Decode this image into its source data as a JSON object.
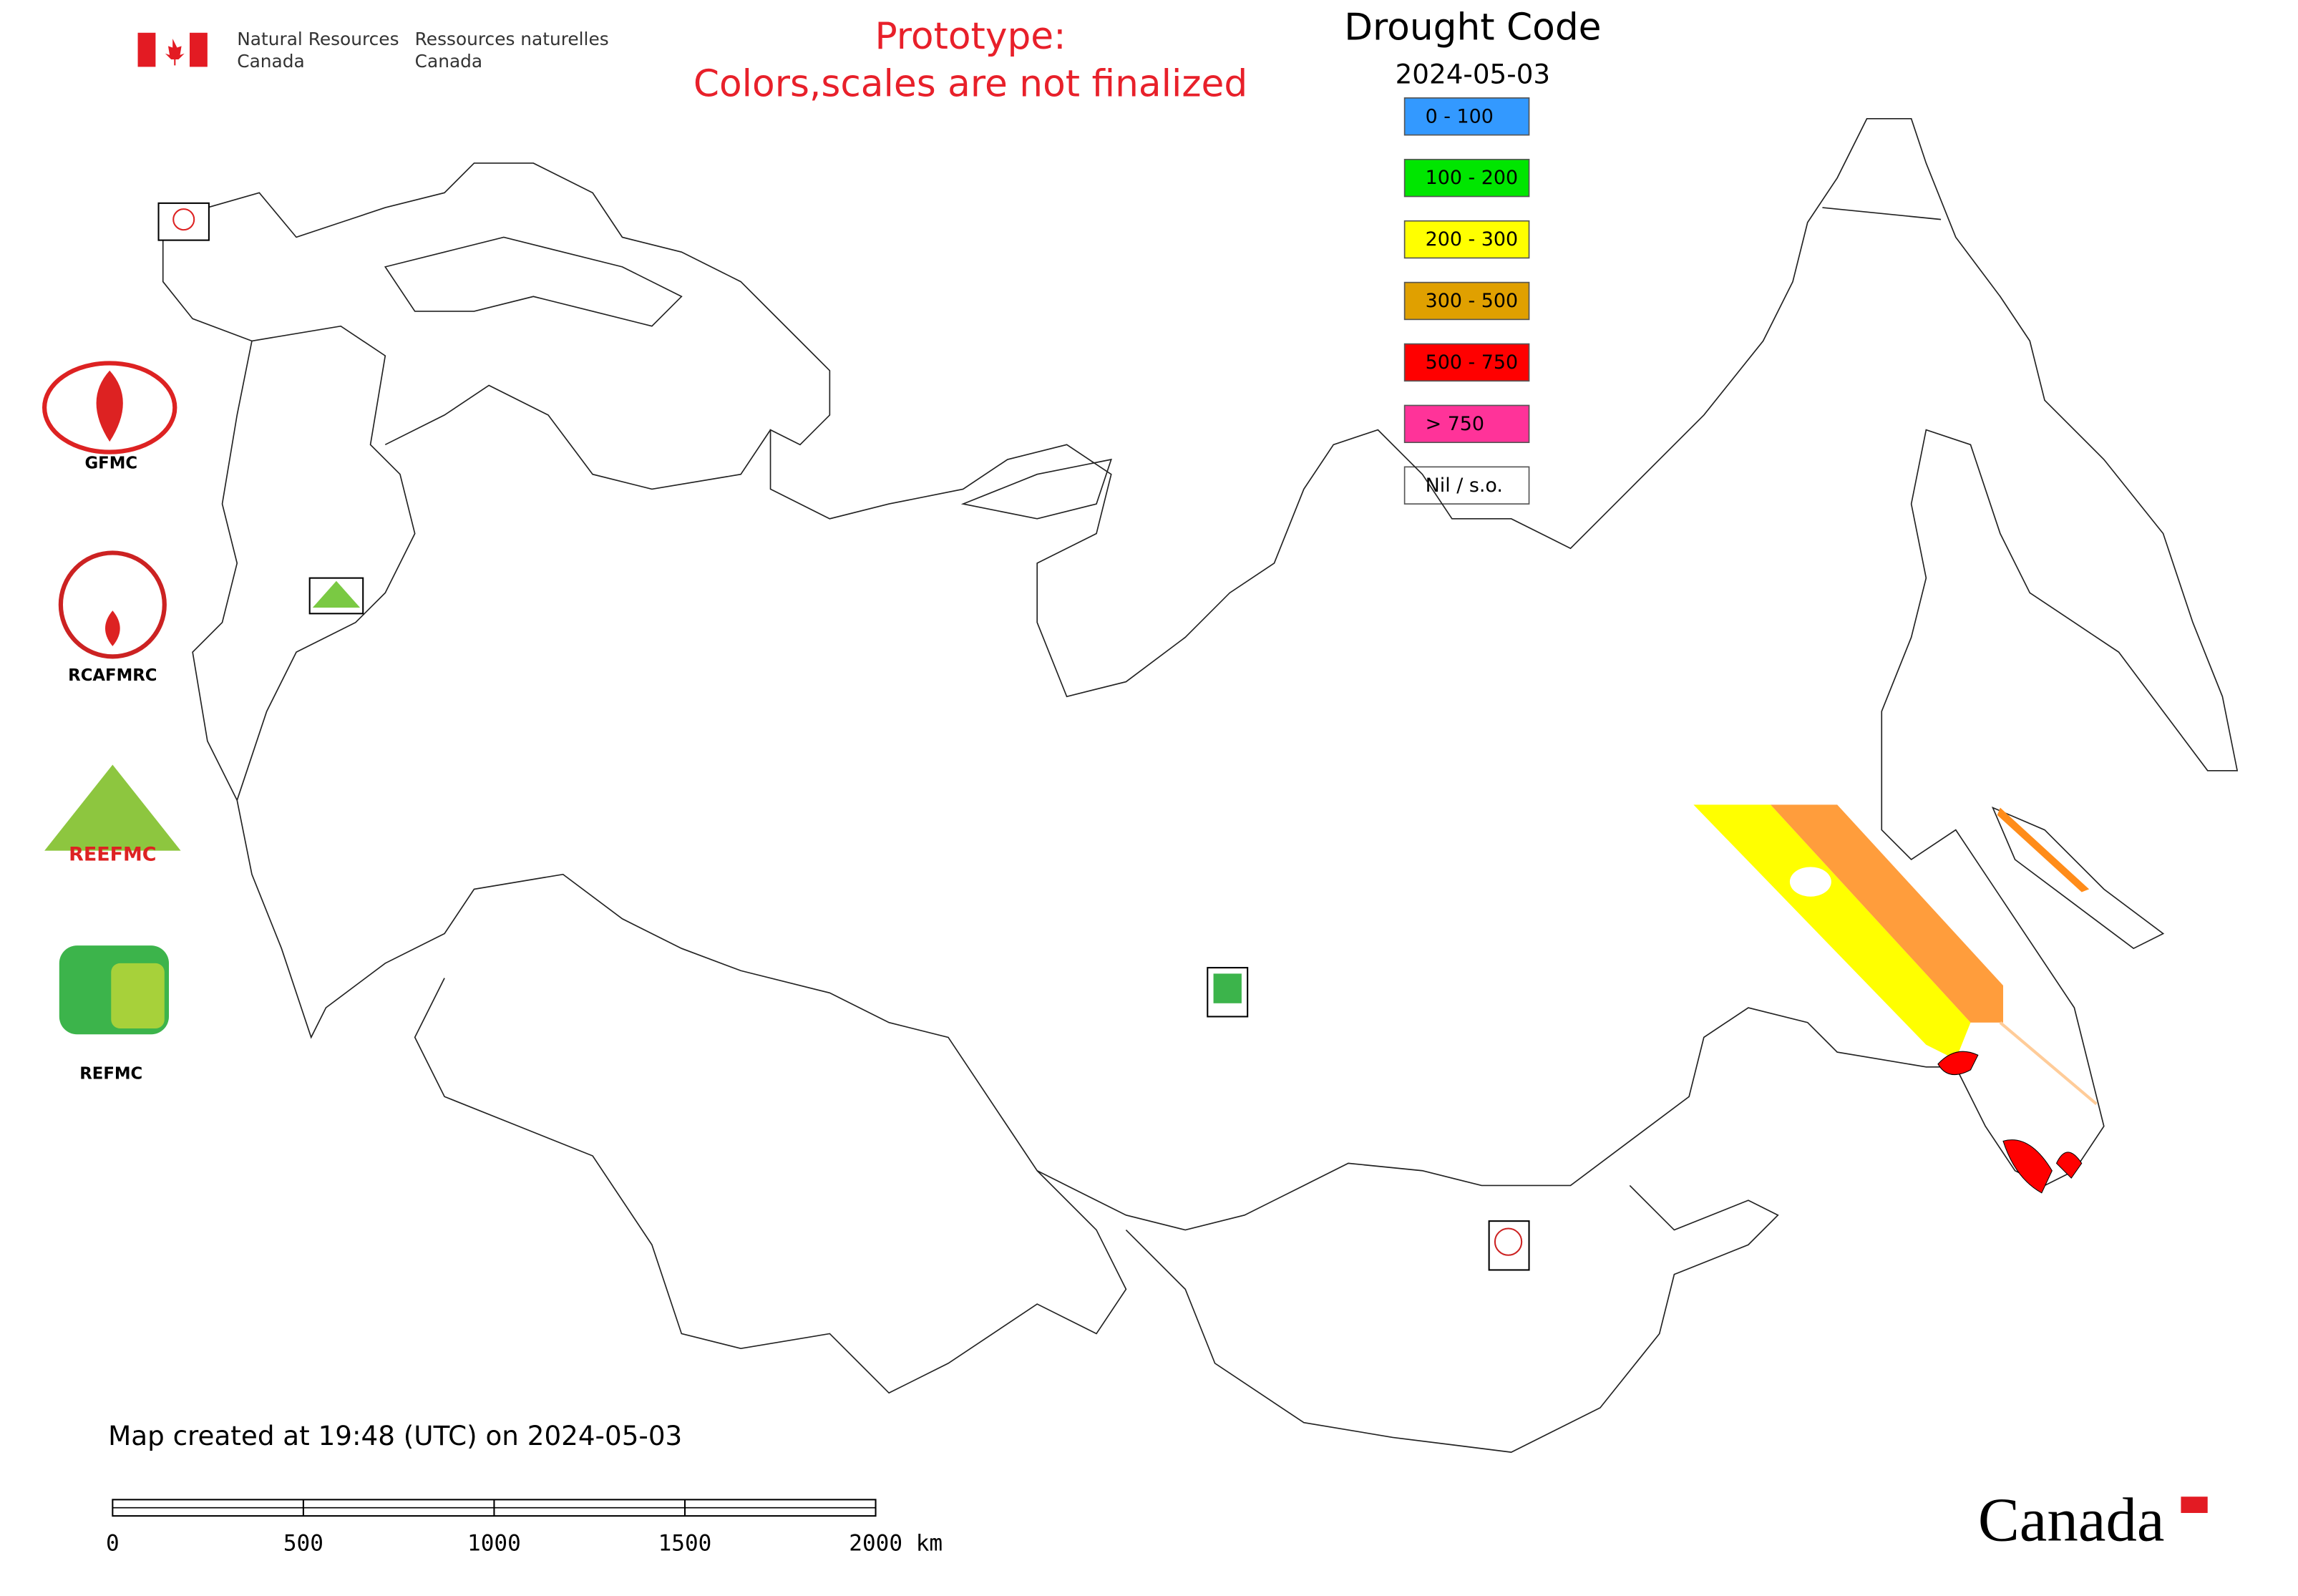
{
  "header": {
    "agency_en": [
      "Natural Resources",
      "Canada"
    ],
    "agency_fr": [
      "Ressources naturelles",
      "Canada"
    ],
    "notice": [
      "Prototype:",
      "Colors,scales are not finalized"
    ]
  },
  "map": {
    "title": "Drought Code",
    "date": "2024-05-03",
    "legend": [
      {
        "label": "0 - 100",
        "color": "#3399ff"
      },
      {
        "label": "100 - 200",
        "color": "#00e600"
      },
      {
        "label": "200 - 300",
        "color": "#ffff00"
      },
      {
        "label": "300 - 500",
        "color": "#e0a000"
      },
      {
        "label": "500 - 750",
        "color": "#ff0000"
      },
      {
        "label": "> 750",
        "color": "#ff3399"
      },
      {
        "label": "Nil / s.o.",
        "color": "#ffffff"
      }
    ],
    "centres": [
      "GFMC",
      "RCAFMRC",
      "REEFMC",
      "REFMC"
    ],
    "created": "Map created at 19:48 (UTC) on 2024-05-03",
    "scale_labels": [
      "0",
      "500",
      "1000",
      "1500",
      "2000 km"
    ]
  },
  "footer": {
    "wordmark": "Canada"
  }
}
